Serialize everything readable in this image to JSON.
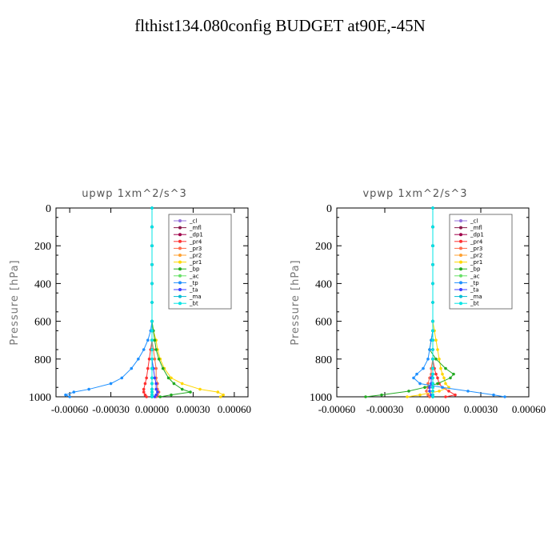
{
  "title": "flthist134.080config  BUDGET at90E,-45N",
  "chart_data": [
    {
      "type": "line",
      "title": "upwp   1xm^2/s^3",
      "ylabel": "Pressure [hPa]",
      "xlabel": "",
      "xlim": [
        -0.0007,
        0.0007
      ],
      "ylim": [
        1000,
        0
      ],
      "xticks": [
        -0.0006,
        -0.0003,
        0.0,
        0.0003,
        0.0006
      ],
      "xtick_labels": [
        "-0.00060",
        "-0.00030",
        "0.00000",
        "0.00030",
        "0.00060"
      ],
      "yticks": [
        0,
        200,
        400,
        600,
        800,
        1000
      ],
      "ytick_labels": [
        "0",
        "200",
        "400",
        "600",
        "800",
        "1000"
      ],
      "legend_position": "top-right",
      "pressure": [
        0,
        100,
        200,
        300,
        400,
        500,
        600,
        650,
        700,
        750,
        800,
        850,
        900,
        930,
        960,
        975,
        990,
        1000
      ],
      "series": [
        {
          "name": "_cl",
          "color": "#9370db",
          "values": [
            0,
            0,
            0,
            0,
            0,
            0,
            0,
            0,
            0,
            0,
            0,
            0,
            0,
            0,
            0,
            0,
            0,
            0
          ]
        },
        {
          "name": "_mfl",
          "color": "#8b1a4a",
          "values": [
            0,
            0,
            0,
            0,
            0,
            0,
            0,
            0,
            0,
            0,
            0,
            0,
            0,
            0,
            0,
            0,
            0,
            0
          ]
        },
        {
          "name": "_dp1",
          "color": "#a0004a",
          "values": [
            0,
            0,
            0,
            0,
            0,
            0,
            0,
            0,
            0,
            0,
            0,
            0,
            0,
            0,
            0,
            0,
            0,
            0
          ]
        },
        {
          "name": "_pr4",
          "color": "#ff3030",
          "values": [
            0,
            0,
            0,
            0,
            0,
            0,
            0,
            0,
            0,
            -1e-05,
            -2e-05,
            -3e-05,
            -4e-05,
            -5e-05,
            -6e-05,
            -6e-05,
            -5e-05,
            -4e-05
          ]
        },
        {
          "name": "_pr3",
          "color": "#ff6a4a",
          "values": [
            0,
            0,
            0,
            0,
            0,
            0,
            0,
            0,
            0,
            1e-05,
            2e-05,
            3e-05,
            3e-05,
            4e-05,
            4e-05,
            5e-05,
            4e-05,
            3e-05
          ]
        },
        {
          "name": "_pr2",
          "color": "#ffa030",
          "values": [
            0,
            0,
            0,
            0,
            0,
            0,
            0,
            0,
            0,
            0,
            0,
            0,
            0,
            0,
            0,
            0,
            0,
            0
          ]
        },
        {
          "name": "_pr1",
          "color": "#ffd700",
          "values": [
            0,
            0,
            0,
            0,
            0,
            0,
            0,
            1e-05,
            3e-05,
            4e-05,
            6e-05,
            9e-05,
            0.00014,
            0.00022,
            0.00035,
            0.00048,
            0.00052,
            0.0005
          ]
        },
        {
          "name": "_bp",
          "color": "#22aa22",
          "values": [
            0,
            0,
            0,
            0,
            0,
            0,
            0,
            1e-05,
            2e-05,
            3e-05,
            5e-05,
            8e-05,
            0.00012,
            0.00016,
            0.00022,
            0.00028,
            0.00014,
            6e-05
          ]
        },
        {
          "name": "_ac",
          "color": "#66e066",
          "values": [
            0,
            0,
            0,
            0,
            0,
            0,
            0,
            0,
            0,
            0,
            0,
            0,
            0,
            0,
            0,
            0,
            0,
            0
          ]
        },
        {
          "name": "_tp",
          "color": "#1e90ff",
          "values": [
            0,
            0,
            0,
            0,
            0,
            0,
            0,
            -1e-05,
            -3e-05,
            -6e-05,
            -0.0001,
            -0.00015,
            -0.00022,
            -0.0003,
            -0.00046,
            -0.00057,
            -0.00063,
            -0.0006
          ]
        },
        {
          "name": "_ta",
          "color": "#4040ff",
          "values": [
            0,
            0,
            0,
            0,
            0,
            0,
            0,
            0,
            0,
            0,
            0,
            1e-05,
            2e-05,
            3e-05,
            3e-05,
            4e-05,
            3e-05,
            2e-05
          ]
        },
        {
          "name": "_ma",
          "color": "#00bcd4",
          "values": [
            0,
            0,
            0,
            0,
            0,
            0,
            0,
            0,
            0,
            0,
            0,
            0,
            0,
            0,
            0,
            0,
            0,
            0
          ]
        },
        {
          "name": "_bt",
          "color": "#00e5e5",
          "values": [
            0,
            0,
            0,
            0,
            0,
            0,
            0,
            0,
            0,
            0,
            0,
            0,
            0,
            0,
            0,
            0,
            0,
            0
          ]
        }
      ]
    },
    {
      "type": "line",
      "title": "vpwp   1xm^2/s^3",
      "ylabel": "Pressure [hPa]",
      "xlabel": "",
      "xlim": [
        -0.0006,
        0.0006
      ],
      "ylim": [
        1000,
        0
      ],
      "xticks": [
        -0.0006,
        -0.0003,
        0.0,
        0.0003,
        0.0006
      ],
      "xtick_labels": [
        "-0.00060",
        "-0.00030",
        "0.00000",
        "0.00030",
        "0.00060"
      ],
      "yticks": [
        0,
        200,
        400,
        600,
        800,
        1000
      ],
      "ytick_labels": [
        "0",
        "200",
        "400",
        "600",
        "800",
        "1000"
      ],
      "legend_position": "top-right",
      "pressure": [
        0,
        100,
        200,
        300,
        400,
        500,
        600,
        650,
        700,
        750,
        800,
        850,
        880,
        900,
        930,
        950,
        970,
        990,
        1000
      ],
      "series": [
        {
          "name": "_cl",
          "color": "#9370db",
          "values": [
            0,
            0,
            0,
            0,
            0,
            0,
            0,
            0,
            0,
            0,
            0,
            0,
            0,
            0,
            0,
            0,
            0,
            0,
            0
          ]
        },
        {
          "name": "_mfl",
          "color": "#8b1a4a",
          "values": [
            0,
            0,
            0,
            0,
            0,
            0,
            0,
            0,
            0,
            0,
            0,
            0,
            0,
            0,
            0,
            0,
            0,
            0,
            0
          ]
        },
        {
          "name": "_dp1",
          "color": "#a0004a",
          "values": [
            0,
            0,
            0,
            0,
            0,
            0,
            0,
            0,
            0,
            0,
            0,
            0,
            0,
            0,
            0,
            0,
            0,
            0,
            0
          ]
        },
        {
          "name": "_pr4",
          "color": "#ff3030",
          "values": [
            0,
            0,
            0,
            0,
            0,
            0,
            0,
            0,
            0,
            0,
            0,
            1e-05,
            2e-05,
            3e-05,
            4e-05,
            6e-05,
            0.0001,
            0.00014,
            8e-05
          ]
        },
        {
          "name": "_pr3",
          "color": "#ff6a4a",
          "values": [
            0,
            0,
            0,
            0,
            0,
            0,
            0,
            0,
            0,
            0,
            0,
            -1e-05,
            -1e-05,
            -2e-05,
            -3e-05,
            -3e-05,
            -4e-05,
            -3e-05,
            -2e-05
          ]
        },
        {
          "name": "_pr2",
          "color": "#ffa030",
          "values": [
            0,
            0,
            0,
            0,
            0,
            0,
            0,
            0,
            0,
            0,
            0,
            0,
            0,
            0,
            0,
            0,
            0,
            0,
            0
          ]
        },
        {
          "name": "_pr1",
          "color": "#ffd700",
          "values": [
            0,
            0,
            0,
            0,
            0,
            0,
            0,
            1e-05,
            2e-05,
            3e-05,
            4e-05,
            5e-05,
            6e-05,
            7e-05,
            8e-05,
            0.0001,
            4e-05,
            -8e-05,
            -0.00016
          ]
        },
        {
          "name": "_bp",
          "color": "#22aa22",
          "values": [
            0,
            0,
            0,
            0,
            0,
            0,
            0,
            0,
            -1e-05,
            -2e-05,
            2e-05,
            8e-05,
            0.00013,
            0.00011,
            3e-05,
            -5e-05,
            -0.00015,
            -0.00032,
            -0.00042
          ]
        },
        {
          "name": "_ac",
          "color": "#66e066",
          "values": [
            0,
            0,
            0,
            0,
            0,
            0,
            0,
            0,
            0,
            0,
            0,
            0,
            0,
            0,
            0,
            0,
            0,
            0,
            0
          ]
        },
        {
          "name": "_tp",
          "color": "#1e90ff",
          "values": [
            0,
            0,
            0,
            0,
            0,
            0,
            0,
            0,
            -1e-05,
            -2e-05,
            -3e-05,
            -6e-05,
            -0.0001,
            -0.00012,
            -8e-05,
            6e-05,
            0.00022,
            0.00038,
            0.00045
          ]
        },
        {
          "name": "_ta",
          "color": "#4040ff",
          "values": [
            0,
            0,
            0,
            0,
            0,
            0,
            0,
            0,
            0,
            0,
            0,
            0,
            0,
            -1e-05,
            -1e-05,
            -2e-05,
            -2e-05,
            -1e-05,
            0
          ]
        },
        {
          "name": "_ma",
          "color": "#00bcd4",
          "values": [
            0,
            0,
            0,
            0,
            0,
            0,
            0,
            0,
            0,
            0,
            0,
            0,
            0,
            0,
            0,
            0,
            0,
            0,
            0
          ]
        },
        {
          "name": "_bt",
          "color": "#00e5e5",
          "values": [
            0,
            0,
            0,
            0,
            0,
            0,
            0,
            0,
            0,
            0,
            0,
            0,
            0,
            0,
            0,
            0,
            0,
            0,
            0
          ]
        }
      ]
    }
  ]
}
